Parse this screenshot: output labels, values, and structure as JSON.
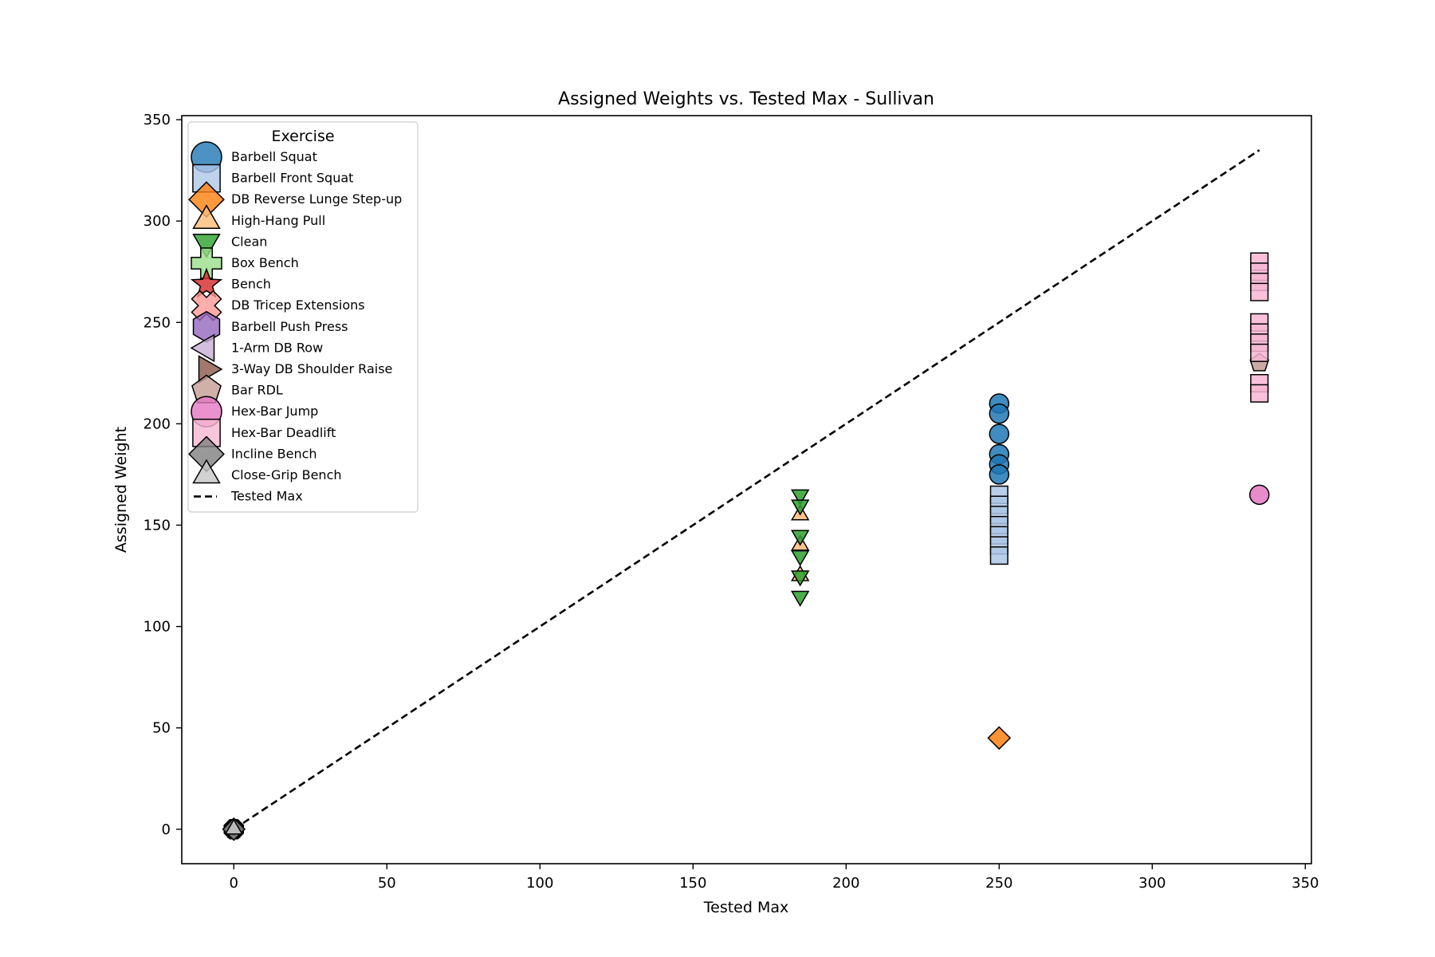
{
  "chart_data": {
    "type": "scatter",
    "title": "Assigned Weights vs. Tested Max - Sullivan",
    "xlabel": "Tested Max",
    "ylabel": "Assigned Weight",
    "xlim": [
      -17,
      352
    ],
    "ylim": [
      -17,
      352
    ],
    "xticks": [
      0,
      50,
      100,
      150,
      200,
      250,
      300,
      350
    ],
    "yticks": [
      0,
      50,
      100,
      150,
      200,
      250,
      300,
      350
    ],
    "grid": false,
    "legend": {
      "title": "Exercise",
      "position": "top-left"
    },
    "series": [
      {
        "name": "Barbell Squat",
        "marker": "circle",
        "color": "#1f77b4",
        "points": [
          [
            250,
            210
          ],
          [
            250,
            205
          ],
          [
            250,
            195
          ],
          [
            250,
            185
          ],
          [
            250,
            180
          ],
          [
            250,
            175
          ]
        ]
      },
      {
        "name": "Barbell Front Squat",
        "marker": "square",
        "color": "#aec7e8",
        "points": [
          [
            250,
            165
          ],
          [
            250,
            160
          ],
          [
            250,
            155
          ],
          [
            250,
            150
          ],
          [
            250,
            145
          ],
          [
            250,
            140
          ],
          [
            250,
            135
          ]
        ]
      },
      {
        "name": "DB Reverse Lunge Step-up",
        "marker": "diamond",
        "color": "#ff7f0e",
        "points": [
          [
            250,
            45
          ]
        ]
      },
      {
        "name": "High-Hang Pull",
        "marker": "triangle-up",
        "color": "#ffbb78",
        "points": [
          [
            185,
            155
          ],
          [
            185,
            140
          ],
          [
            185,
            125
          ]
        ]
      },
      {
        "name": "Clean",
        "marker": "triangle-down",
        "color": "#2ca02c",
        "points": [
          [
            185,
            165
          ],
          [
            185,
            160
          ],
          [
            185,
            145
          ],
          [
            185,
            135
          ],
          [
            185,
            125
          ],
          [
            185,
            115
          ]
        ]
      },
      {
        "name": "Box Bench",
        "marker": "plus",
        "color": "#98df8a",
        "points": [
          [
            0,
            0
          ]
        ]
      },
      {
        "name": "Bench",
        "marker": "star",
        "color": "#d62728",
        "points": [
          [
            0,
            0
          ]
        ]
      },
      {
        "name": "DB Tricep Extensions",
        "marker": "x",
        "color": "#ff9896",
        "points": [
          [
            0,
            0
          ]
        ]
      },
      {
        "name": "Barbell Push Press",
        "marker": "hexagon",
        "color": "#9467bd",
        "points": [
          [
            0,
            0
          ]
        ]
      },
      {
        "name": "1-Arm DB Row",
        "marker": "triangle-left",
        "color": "#c5b0d5",
        "points": [
          [
            0,
            0
          ]
        ]
      },
      {
        "name": "3-Way DB Shoulder Raise",
        "marker": "triangle-right",
        "color": "#8c564b",
        "points": [
          [
            0,
            0
          ]
        ]
      },
      {
        "name": "Bar RDL",
        "marker": "pentagon",
        "color": "#c49c94",
        "points": [
          [
            335,
            230
          ]
        ]
      },
      {
        "name": "Hex-Bar Jump",
        "marker": "circle",
        "color": "#e377c2",
        "points": [
          [
            335,
            165
          ]
        ]
      },
      {
        "name": "Hex-Bar Deadlift",
        "marker": "square",
        "color": "#f7b6d2",
        "points": [
          [
            335,
            280
          ],
          [
            335,
            275
          ],
          [
            335,
            270
          ],
          [
            335,
            265
          ],
          [
            335,
            250
          ],
          [
            335,
            245
          ],
          [
            335,
            240
          ],
          [
            335,
            235
          ],
          [
            335,
            220
          ],
          [
            335,
            215
          ]
        ]
      },
      {
        "name": "Incline Bench",
        "marker": "diamond",
        "color": "#7f7f7f",
        "points": [
          [
            0,
            0
          ]
        ]
      },
      {
        "name": "Close-Grip Bench",
        "marker": "triangle-up",
        "color": "#c7c7c7",
        "points": [
          [
            0,
            0
          ]
        ]
      }
    ],
    "reference_line": {
      "name": "Tested Max",
      "style": "dashed",
      "color": "#000000",
      "points": [
        [
          0,
          0
        ],
        [
          185,
          185
        ],
        [
          250,
          250
        ],
        [
          335,
          335
        ]
      ]
    }
  }
}
